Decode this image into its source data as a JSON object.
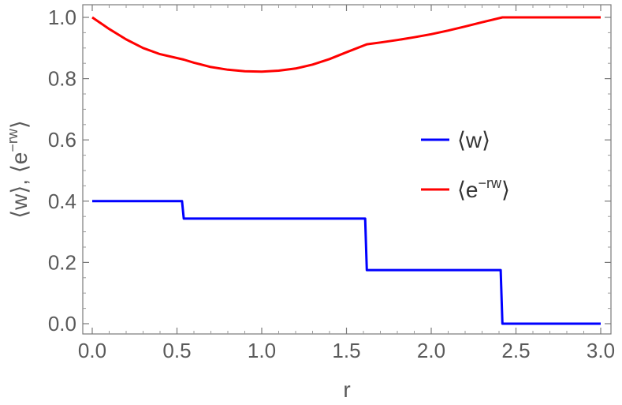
{
  "chart_data": {
    "type": "line",
    "xlabel": "r",
    "ylabel_parts": [
      "⟨w⟩, ⟨e",
      "−rw",
      "⟩"
    ],
    "xlim": [
      0.0,
      3.0
    ],
    "ylim": [
      0.0,
      1.0
    ],
    "xticks": [
      "0.0",
      "0.5",
      "1.0",
      "1.5",
      "2.0",
      "2.5",
      "3.0"
    ],
    "yticks": [
      "0.0",
      "0.2",
      "0.4",
      "0.6",
      "0.8",
      "1.0"
    ],
    "legend_placement": "right-middle",
    "series": [
      {
        "name": "⟨w⟩",
        "color": "#0000ff",
        "x": [
          0.0,
          0.53,
          0.54,
          1.61,
          1.62,
          2.41,
          2.42,
          3.0
        ],
        "y": [
          0.4,
          0.4,
          0.343,
          0.343,
          0.175,
          0.175,
          0.0,
          0.0
        ]
      },
      {
        "name": "⟨e−rw⟩",
        "name_parts": [
          "⟨e",
          "−rw",
          "⟩"
        ],
        "color": "#ff0000",
        "x": [
          0.0,
          0.1,
          0.2,
          0.3,
          0.4,
          0.54,
          0.6,
          0.7,
          0.8,
          0.9,
          1.0,
          1.1,
          1.2,
          1.3,
          1.4,
          1.5,
          1.62,
          1.7,
          1.8,
          1.9,
          2.0,
          2.1,
          2.2,
          2.3,
          2.42,
          2.5,
          2.6,
          2.7,
          2.8,
          2.9,
          3.0
        ],
        "y": [
          1.0,
          0.962,
          0.928,
          0.9,
          0.88,
          0.862,
          0.852,
          0.838,
          0.829,
          0.824,
          0.823,
          0.826,
          0.833,
          0.846,
          0.864,
          0.886,
          0.912,
          0.918,
          0.926,
          0.935,
          0.945,
          0.957,
          0.97,
          0.984,
          1.0,
          1.0,
          1.0,
          1.0,
          1.0,
          1.0,
          1.0
        ]
      }
    ]
  }
}
